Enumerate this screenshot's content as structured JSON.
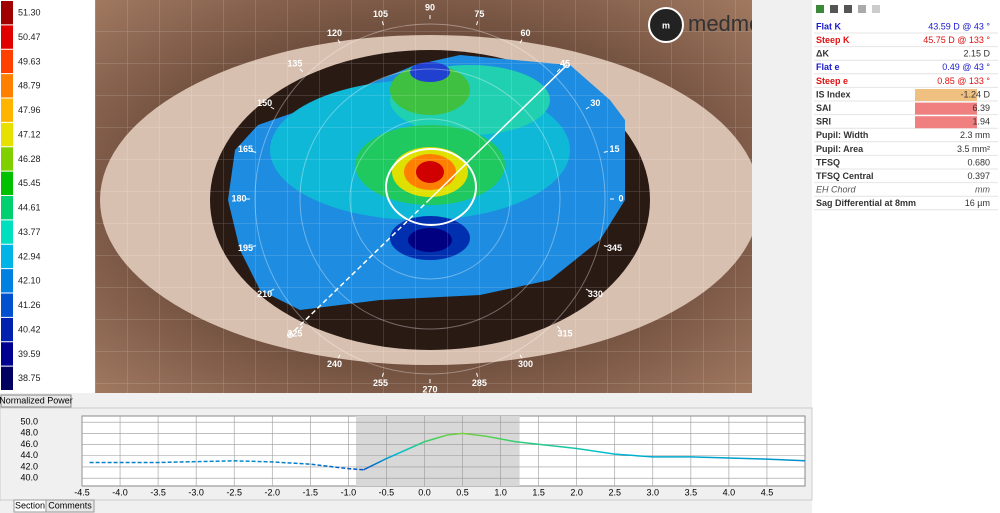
{
  "scale": {
    "entries": [
      {
        "label": "51.30",
        "color": "#a00000"
      },
      {
        "label": "50.47",
        "color": "#e00000"
      },
      {
        "label": "49.63",
        "color": "#ff4000"
      },
      {
        "label": "48.79",
        "color": "#ff8000"
      },
      {
        "label": "47.96",
        "color": "#ffb400"
      },
      {
        "label": "47.12",
        "color": "#e8e000"
      },
      {
        "label": "46.28",
        "color": "#80d000"
      },
      {
        "label": "45.45",
        "color": "#00c000"
      },
      {
        "label": "44.61",
        "color": "#00d070"
      },
      {
        "label": "43.77",
        "color": "#00e0c0"
      },
      {
        "label": "42.94",
        "color": "#00b4e8"
      },
      {
        "label": "42.10",
        "color": "#0080e0"
      },
      {
        "label": "41.26",
        "color": "#0050d0"
      },
      {
        "label": "40.42",
        "color": "#0020b0"
      },
      {
        "label": "39.59",
        "color": "#000090"
      },
      {
        "label": "38.75",
        "color": "#000060"
      }
    ],
    "button": "Normalized Power"
  },
  "map": {
    "logo": "medmont",
    "meridians": [
      90,
      75,
      60,
      45,
      30,
      15,
      0,
      345,
      330,
      315,
      300,
      285,
      270,
      255,
      240,
      225,
      210,
      195,
      180,
      165,
      150,
      135,
      120,
      105
    ]
  },
  "indices": [
    {
      "label": "Flat K",
      "value": "43.59 D @  43 °",
      "color": "#1a1ad0"
    },
    {
      "label": "Steep K",
      "value": "45.75 D @ 133 °",
      "color": "#e01010"
    },
    {
      "label": "ΔK",
      "value": "2.15 D",
      "color": "#333333"
    },
    {
      "label": "Flat e",
      "value": "0.49 @  43 °",
      "color": "#1a1ad0"
    },
    {
      "label": "Steep e",
      "value": "0.85 @ 133 °",
      "color": "#e01010"
    },
    {
      "label": "IS Index",
      "value": "-1.24 D",
      "color": "#333333",
      "bg": "#f0c080"
    },
    {
      "label": "SAI",
      "value": "6.39",
      "color": "#333333",
      "bg": "#f08080"
    },
    {
      "label": "SRI",
      "value": "1.94",
      "color": "#333333",
      "bg": "#f08080"
    },
    {
      "label": "Pupil: Width",
      "value": "2.3 mm",
      "color": "#333333"
    },
    {
      "label": "Pupil: Area",
      "value": "3.5 mm²",
      "color": "#333333"
    },
    {
      "label": "TFSQ",
      "value": "0.680",
      "color": "#333333"
    },
    {
      "label": "TFSQ Central",
      "value": "0.397",
      "color": "#333333"
    },
    {
      "label": "EH Chord",
      "value": "mm",
      "color": "#555555",
      "italic": true
    },
    {
      "label": "Sag Differential at 8mm",
      "value": "16 µm",
      "color": "#333333"
    }
  ],
  "chart_data": {
    "type": "line",
    "x": [
      -4.4,
      -3.5,
      -2.5,
      -2.0,
      -1.5,
      -1.0,
      -0.8,
      -0.5,
      0.0,
      0.3,
      0.5,
      0.8,
      1.2,
      2.0,
      2.5,
      3.0,
      3.5,
      4.0,
      4.5,
      5.0
    ],
    "series": [
      {
        "values": [
          42.8,
          42.8,
          43.1,
          42.9,
          42.5,
          41.7,
          41.5,
          null,
          null,
          null,
          null,
          null,
          null,
          null,
          null,
          null,
          null,
          null,
          null,
          null
        ],
        "dashed": true
      },
      {
        "values": [
          null,
          null,
          null,
          null,
          null,
          null,
          41.5,
          43.5,
          46.5,
          47.7,
          48.0,
          47.5,
          46.5,
          45.3,
          44.3,
          43.8,
          43.8,
          43.6,
          43.4,
          43.1
        ],
        "dashed": false
      }
    ],
    "highlight": [
      -0.9,
      1.25
    ],
    "xlim": [
      -4.5,
      5.0
    ],
    "ylim": [
      38.6,
      51.1
    ],
    "xticks": [
      {
        "value": -4.5,
        "label": "-4.5"
      },
      {
        "value": -4.0,
        "label": "-4.0"
      },
      {
        "value": -3.5,
        "label": "-3.5"
      },
      {
        "value": -3.0,
        "label": "-3.0"
      },
      {
        "value": -2.5,
        "label": "-2.5"
      },
      {
        "value": -2.0,
        "label": "-2.0"
      },
      {
        "value": -1.5,
        "label": "-1.5"
      },
      {
        "value": -1.0,
        "label": "-1.0"
      },
      {
        "value": -0.5,
        "label": "-0.5"
      },
      {
        "value": 0,
        "label": "0.0"
      },
      {
        "value": 0.5,
        "label": "0.5"
      },
      {
        "value": 1.0,
        "label": "1.0"
      },
      {
        "value": 1.5,
        "label": "1.5"
      },
      {
        "value": 2.0,
        "label": "2.0"
      },
      {
        "value": 2.5,
        "label": "2.5"
      },
      {
        "value": 3.0,
        "label": "3.0"
      },
      {
        "value": 3.5,
        "label": "3.5"
      },
      {
        "value": 4.0,
        "label": "4.0"
      },
      {
        "value": 4.5,
        "label": "4.5"
      }
    ],
    "yticks": [
      {
        "value": 40,
        "label": "40.0"
      },
      {
        "value": 42,
        "label": "42.0"
      },
      {
        "value": 44,
        "label": "44.0"
      },
      {
        "value": 46,
        "label": "46.0"
      },
      {
        "value": 48,
        "label": "48.0"
      },
      {
        "value": 50,
        "label": "50.0"
      }
    ],
    "grid": true
  },
  "tabs": [
    "Section",
    "Comments"
  ]
}
